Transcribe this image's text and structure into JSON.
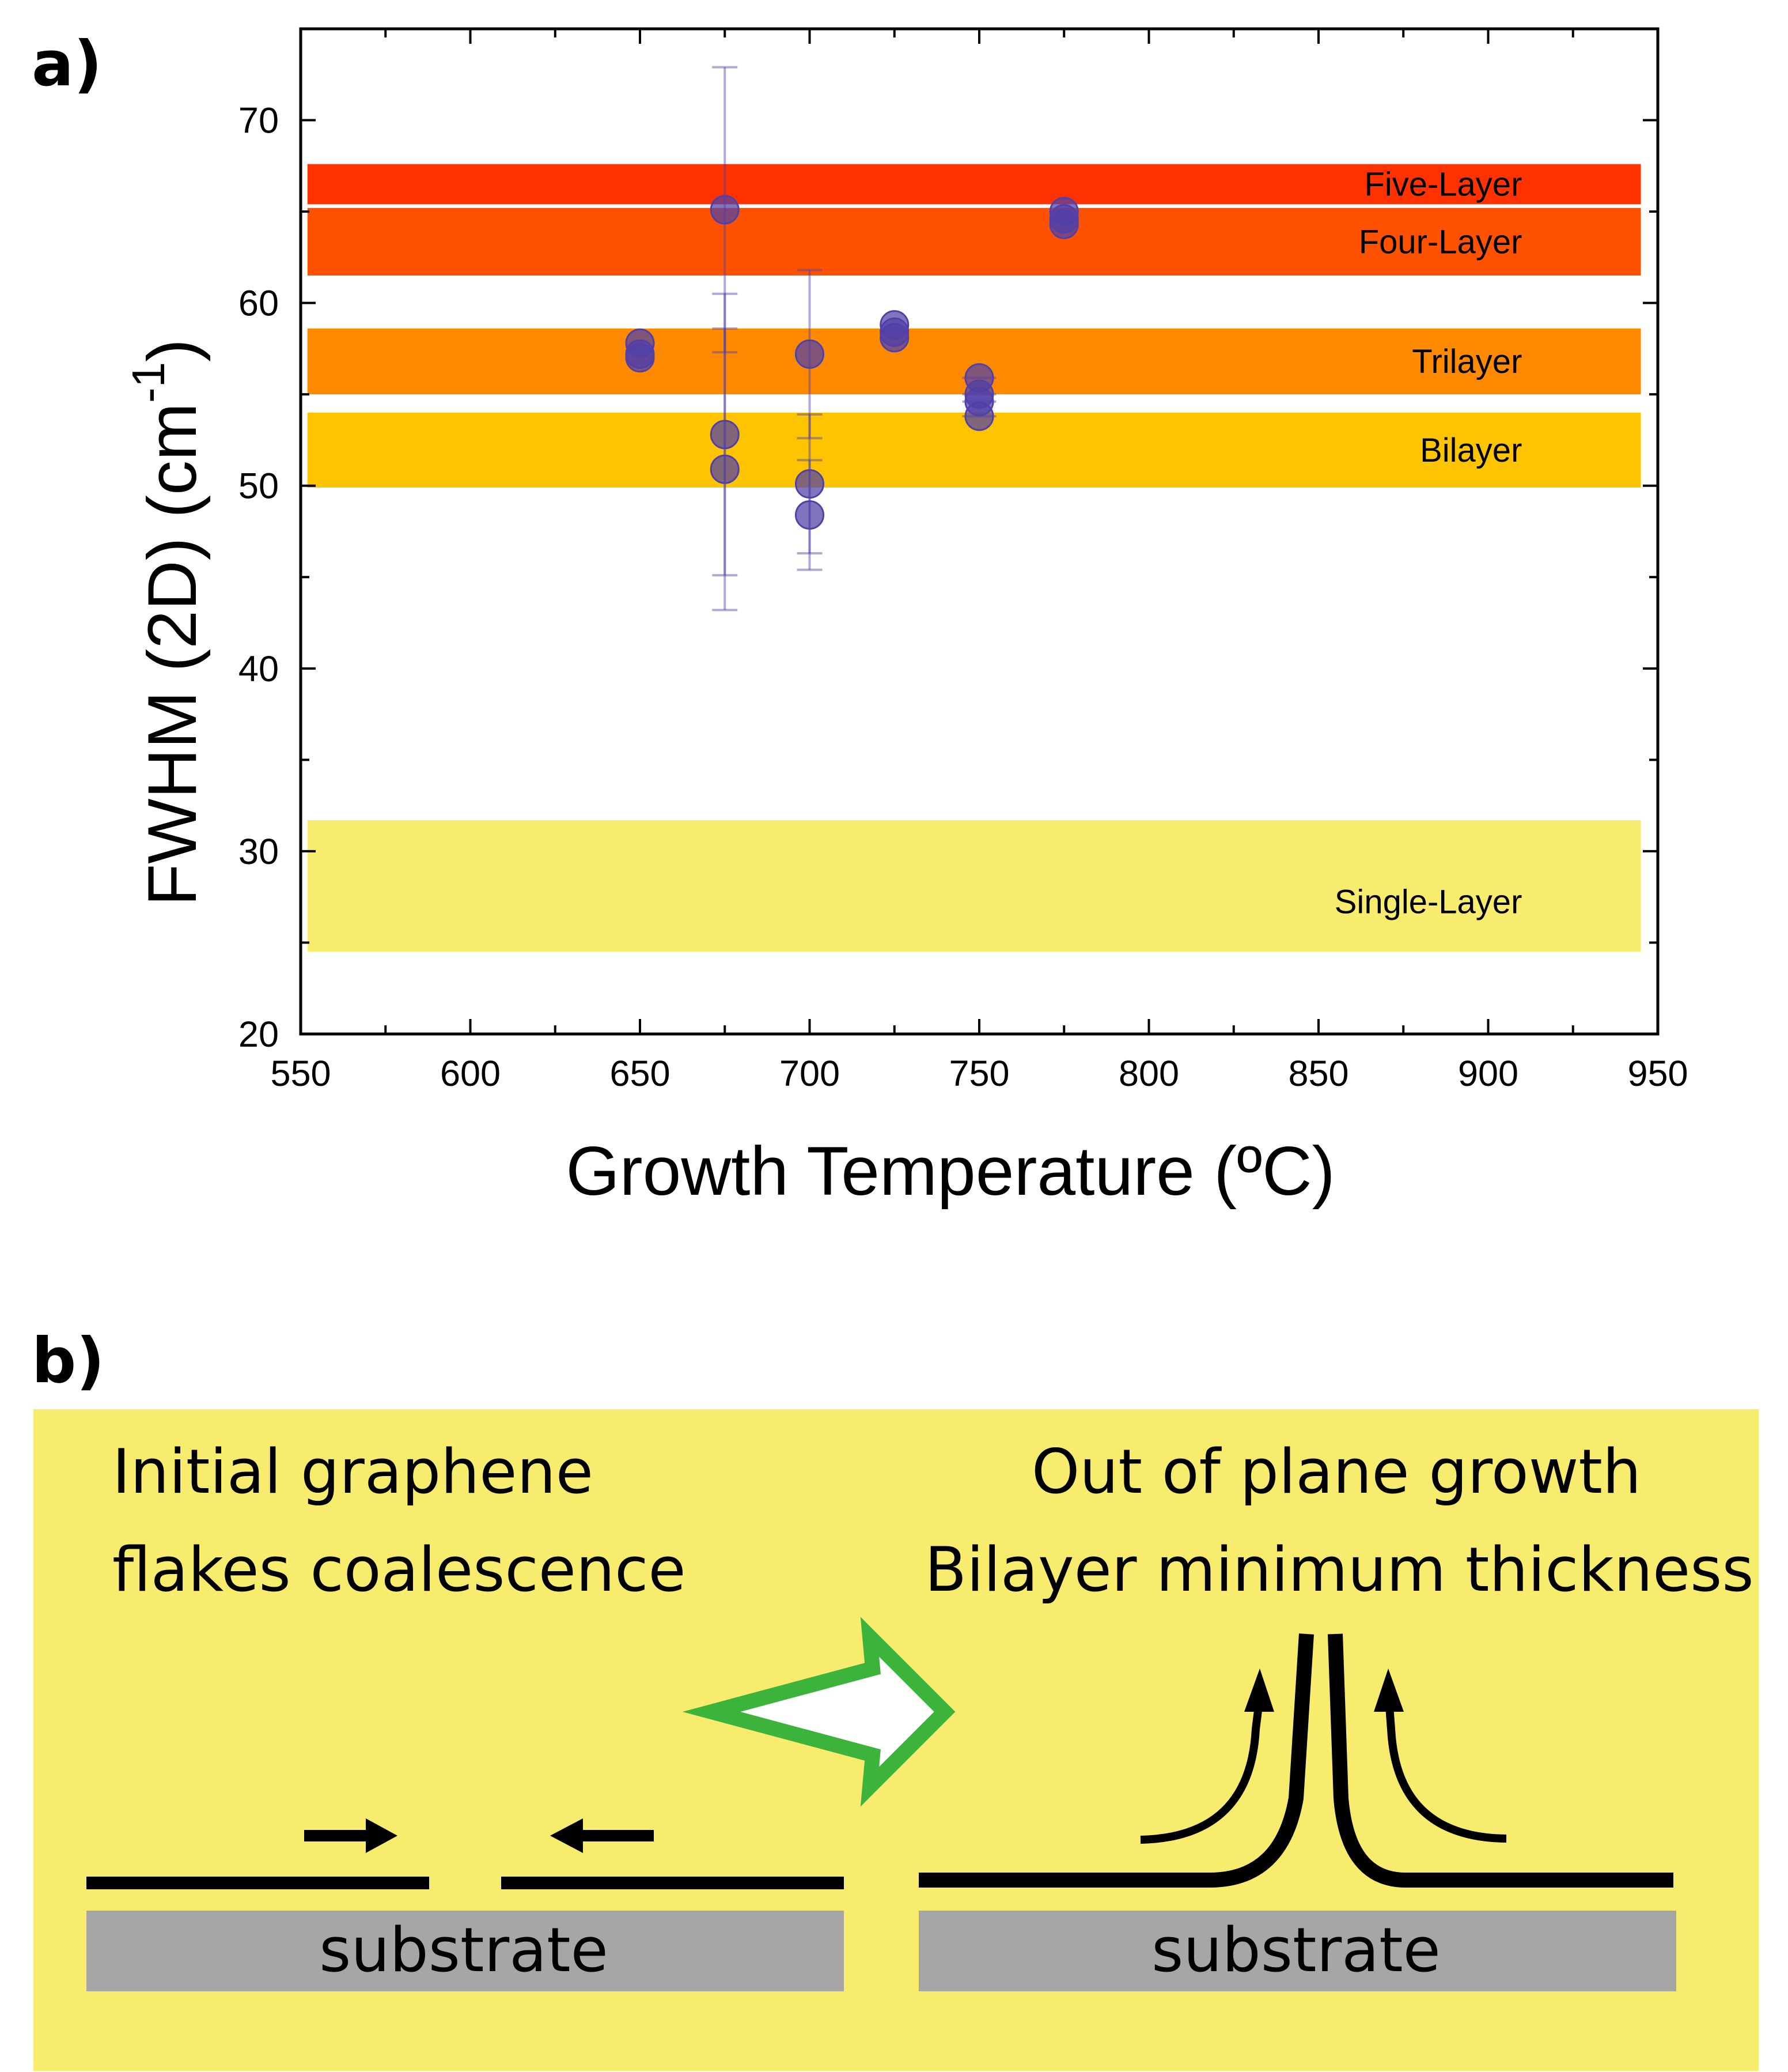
{
  "chart_data": {
    "type": "scatter",
    "panel_label": "a)",
    "xlabel": "Growth Temperature (ºC)",
    "ylabel": "FWHM (2D) (cm",
    "ylabel_superscript": "-1",
    "ylabel_close": ")",
    "xlim": [
      550,
      950
    ],
    "ylim": [
      20,
      75
    ],
    "x_ticks": [
      550,
      600,
      650,
      700,
      750,
      800,
      850,
      900,
      950
    ],
    "y_ticks": [
      20,
      30,
      40,
      50,
      60,
      70
    ],
    "bands": [
      {
        "name": "Single-Layer",
        "low": 24.5,
        "high": 31.7,
        "color": "#f8ec6e"
      },
      {
        "name": "Bilayer",
        "low": 49.9,
        "high": 54.0,
        "color": "#fec400"
      },
      {
        "name": "Trilayer",
        "low": 55.0,
        "high": 58.6,
        "color": "#ff8a00"
      },
      {
        "name": "Four-Layer",
        "low": 61.5,
        "high": 65.2,
        "color": "#ff5200"
      },
      {
        "name": "Five-Layer",
        "low": 65.4,
        "high": 67.6,
        "color": "#ff3200"
      }
    ],
    "series": [
      {
        "name": "FWHM (2D)",
        "color": "#5040a8",
        "points": [
          {
            "x": 650,
            "y": 57.8
          },
          {
            "x": 650,
            "y": 57.2
          },
          {
            "x": 650,
            "y": 57.0
          },
          {
            "x": 675,
            "y": 65.1,
            "yerr": 7.8
          },
          {
            "x": 675,
            "y": 52.8,
            "yerr": 7.7
          },
          {
            "x": 675,
            "y": 50.9,
            "yerr": 7.7
          },
          {
            "x": 700,
            "y": 57.2,
            "yerr": 4.6
          },
          {
            "x": 700,
            "y": 50.1,
            "yerr": 3.8
          },
          {
            "x": 700,
            "y": 48.4,
            "yerr": 3.0
          },
          {
            "x": 725,
            "y": 58.8
          },
          {
            "x": 725,
            "y": 58.4
          },
          {
            "x": 725,
            "y": 58.1
          },
          {
            "x": 750,
            "y": 55.9,
            "xerr": 5
          },
          {
            "x": 750,
            "y": 55.0,
            "xerr": 5
          },
          {
            "x": 750,
            "y": 54.6,
            "xerr": 5
          },
          {
            "x": 750,
            "y": 53.8,
            "xerr": 5
          },
          {
            "x": 775,
            "y": 65.0
          },
          {
            "x": 775,
            "y": 64.6
          },
          {
            "x": 775,
            "y": 64.3
          }
        ]
      }
    ]
  },
  "diagram": {
    "panel_label": "b)",
    "left_caption": [
      "Initial graphene",
      "flakes coalescence"
    ],
    "right_caption": [
      "Out of plane growth",
      "Bilayer minimum thickness"
    ],
    "left_substrate_label": "substrate",
    "right_substrate_label": "substrate",
    "colors": {
      "background": "#f8ec6e",
      "substrate": "#a6a6a6",
      "arrow_outline": "#3cb43c",
      "arrow_fill": "#ffffff"
    }
  }
}
